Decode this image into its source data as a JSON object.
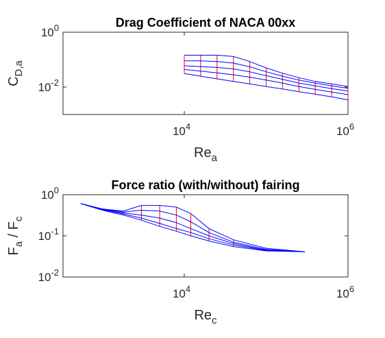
{
  "chart_data": [
    {
      "type": "mesh",
      "title": "Drag Coefficient of NACA 00xx",
      "xlabel": {
        "parts": [
          {
            "text": "Re",
            "sub": false
          },
          {
            "text": "a",
            "sub": true
          }
        ]
      },
      "ylabel": {
        "parts": [
          {
            "text": "C",
            "sub": false
          },
          {
            "text": "D,a",
            "sub": true
          }
        ]
      },
      "log_x": true,
      "log_y": true,
      "xlim": [
        330,
        1000000
      ],
      "ylim": [
        0.001,
        1
      ],
      "xticks": [
        {
          "value": 10000,
          "label": "10",
          "exp": "4"
        },
        {
          "value": 1000000,
          "label": "10",
          "exp": "6"
        }
      ],
      "yticks": [
        {
          "value": 0.01,
          "label": "10",
          "exp": "-2"
        },
        {
          "value": 1,
          "label": "10",
          "exp": "0"
        }
      ],
      "row_color": "#0000ff",
      "column_color": "#ff0000",
      "x": [
        10000,
        15849,
        25119,
        39811,
        63096,
        100000,
        158489,
        251189,
        398107,
        630957,
        1000000
      ],
      "series": [
        {
          "values": [
            0.145,
            0.145,
            0.145,
            0.13,
            0.085,
            0.05,
            0.032,
            0.022,
            0.016,
            0.013,
            0.0105
          ]
        },
        {
          "values": [
            0.09,
            0.09,
            0.085,
            0.075,
            0.055,
            0.036,
            0.025,
            0.018,
            0.014,
            0.011,
            0.009
          ]
        },
        {
          "values": [
            0.06,
            0.056,
            0.052,
            0.046,
            0.036,
            0.026,
            0.019,
            0.014,
            0.011,
            0.0088,
            0.0072
          ]
        },
        {
          "values": [
            0.044,
            0.038,
            0.033,
            0.028,
            0.023,
            0.018,
            0.014,
            0.0105,
            0.0082,
            0.0066,
            0.0053
          ]
        },
        {
          "values": [
            0.031,
            0.025,
            0.02,
            0.016,
            0.013,
            0.0105,
            0.0085,
            0.0068,
            0.0055,
            0.0044,
            0.0034
          ]
        }
      ]
    },
    {
      "type": "mesh",
      "title": "Force ratio (with/without) fairing",
      "xlabel": {
        "parts": [
          {
            "text": "Re",
            "sub": false
          },
          {
            "text": "c",
            "sub": true
          }
        ]
      },
      "ylabel": {
        "parts": [
          {
            "text": "F",
            "sub": false
          },
          {
            "text": "a",
            "sub": true
          },
          {
            "text": " / F",
            "sub": false
          },
          {
            "text": "c",
            "sub": true
          }
        ]
      },
      "log_x": true,
      "log_y": true,
      "xlim": [
        330,
        1000000
      ],
      "ylim": [
        0.01,
        1
      ],
      "xticks": [
        {
          "value": 10000,
          "label": "10",
          "exp": "4"
        },
        {
          "value": 1000000,
          "label": "10",
          "exp": "6"
        }
      ],
      "yticks": [
        {
          "value": 0.01,
          "label": "10",
          "exp": "-2"
        },
        {
          "value": 0.1,
          "label": "10",
          "exp": "-1"
        },
        {
          "value": 1,
          "label": "10",
          "exp": "0"
        }
      ],
      "row_color": "#0000ff",
      "column_color": "#ff0000",
      "x": [
        540,
        1000,
        1800,
        3000,
        5000,
        8000,
        12000,
        20000,
        40000,
        100000,
        297000
      ],
      "series": [
        {
          "values": [
            0.61,
            0.45,
            0.4,
            0.55,
            0.55,
            0.5,
            0.35,
            0.15,
            0.08,
            0.05,
            0.041
          ]
        },
        {
          "values": [
            0.61,
            0.45,
            0.38,
            0.42,
            0.4,
            0.32,
            0.22,
            0.12,
            0.07,
            0.047,
            0.041
          ]
        },
        {
          "values": [
            0.61,
            0.44,
            0.36,
            0.32,
            0.27,
            0.21,
            0.15,
            0.1,
            0.065,
            0.045,
            0.041
          ]
        },
        {
          "values": [
            0.61,
            0.43,
            0.34,
            0.27,
            0.2,
            0.15,
            0.12,
            0.085,
            0.06,
            0.044,
            0.041
          ]
        },
        {
          "values": [
            0.61,
            0.42,
            0.32,
            0.24,
            0.17,
            0.13,
            0.1,
            0.075,
            0.055,
            0.043,
            0.041
          ]
        }
      ]
    }
  ]
}
